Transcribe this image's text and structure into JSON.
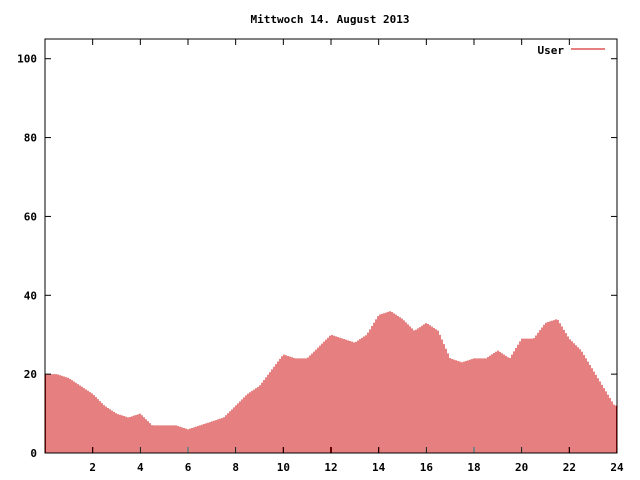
{
  "chart_data": {
    "type": "bar",
    "title": "Mittwoch 14. August 2013",
    "xlabel": "",
    "ylabel": "",
    "xlim": [
      0,
      24
    ],
    "ylim": [
      0,
      105
    ],
    "x_ticks": [
      "2",
      "4",
      "6",
      "8",
      "10",
      "12",
      "14",
      "16",
      "18",
      "20",
      "22",
      "24"
    ],
    "y_ticks": [
      "0",
      "20",
      "40",
      "60",
      "80",
      "100"
    ],
    "grid": false,
    "legend_position": "top-right",
    "series": [
      {
        "name": "User",
        "color": "#cc0000",
        "points": [
          [
            0.0,
            20
          ],
          [
            0.5,
            20
          ],
          [
            1.0,
            19
          ],
          [
            1.5,
            17
          ],
          [
            2.0,
            15
          ],
          [
            2.5,
            12
          ],
          [
            3.0,
            10
          ],
          [
            3.5,
            9
          ],
          [
            4.0,
            10
          ],
          [
            4.5,
            7
          ],
          [
            5.0,
            7
          ],
          [
            5.5,
            7
          ],
          [
            6.0,
            6
          ],
          [
            6.5,
            7
          ],
          [
            7.0,
            8
          ],
          [
            7.5,
            9
          ],
          [
            8.0,
            12
          ],
          [
            8.5,
            15
          ],
          [
            9.0,
            17
          ],
          [
            9.5,
            21
          ],
          [
            10.0,
            25
          ],
          [
            10.5,
            24
          ],
          [
            11.0,
            24
          ],
          [
            11.5,
            27
          ],
          [
            12.0,
            30
          ],
          [
            12.5,
            29
          ],
          [
            13.0,
            28
          ],
          [
            13.5,
            30
          ],
          [
            14.0,
            35
          ],
          [
            14.5,
            36
          ],
          [
            15.0,
            34
          ],
          [
            15.5,
            31
          ],
          [
            16.0,
            33
          ],
          [
            16.5,
            31
          ],
          [
            17.0,
            24
          ],
          [
            17.5,
            23
          ],
          [
            18.0,
            24
          ],
          [
            18.5,
            24
          ],
          [
            19.0,
            26
          ],
          [
            19.5,
            24
          ],
          [
            20.0,
            29
          ],
          [
            20.5,
            29
          ],
          [
            21.0,
            33
          ],
          [
            21.5,
            34
          ],
          [
            22.0,
            29
          ],
          [
            22.5,
            26
          ],
          [
            23.0,
            21
          ],
          [
            23.5,
            16
          ],
          [
            23.9,
            12
          ]
        ]
      }
    ]
  }
}
